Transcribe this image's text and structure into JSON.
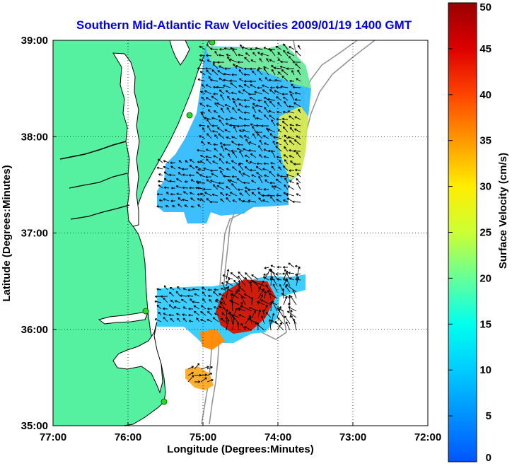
{
  "chart_data": {
    "type": "heatmap",
    "title": "Southern Mid-Atlantic Raw Velocities 2009/01/19 1400 GMT",
    "xlabel": "Longitude (Degrees:Minutes)",
    "ylabel": "Latitude (Degrees:Minutes)",
    "xlim": [
      -77,
      -72
    ],
    "ylim": [
      35,
      39
    ],
    "x_ticks": [
      -77,
      -76,
      -75,
      -74,
      -73,
      -72
    ],
    "x_tick_labels": [
      "77:00",
      "76:00",
      "75:00",
      "74:00",
      "73:00",
      "72:00"
    ],
    "y_ticks": [
      35,
      36,
      37,
      38,
      39
    ],
    "y_tick_labels": [
      "35:00",
      "36:00",
      "37:00",
      "38:00",
      "39:00"
    ],
    "grid": true,
    "colorbar": {
      "label": "Surface Velocity (cm/s)",
      "range": [
        0,
        50
      ],
      "ticks": [
        0,
        5,
        10,
        15,
        20,
        25,
        30,
        35,
        40,
        45,
        50
      ]
    },
    "colors": {
      "land": "#55f0a0",
      "water": "#ffffff",
      "coastline": "#000000",
      "bathymetry": "#909090",
      "title": "#0000ee",
      "sites": "#22dd22"
    },
    "velocity_regions": [
      {
        "lon": -74.9,
        "lat": 38.1,
        "speed": 13
      },
      {
        "lon": -75.3,
        "lat": 37.5,
        "speed": 9
      },
      {
        "lon": -74.2,
        "lat": 38.6,
        "speed": 16
      },
      {
        "lon": -73.9,
        "lat": 37.9,
        "speed": 22
      },
      {
        "lon": -75.2,
        "lat": 38.75,
        "speed": 18
      },
      {
        "lon": -74.2,
        "lat": 36.8,
        "speed": 10
      },
      {
        "lon": -75.2,
        "lat": 36.15,
        "speed": 10
      },
      {
        "lon": -74.3,
        "lat": 36.15,
        "speed": 47
      },
      {
        "lon": -74.95,
        "lat": 35.95,
        "speed": 33
      },
      {
        "lon": -75.0,
        "lat": 35.6,
        "speed": 22
      }
    ]
  }
}
